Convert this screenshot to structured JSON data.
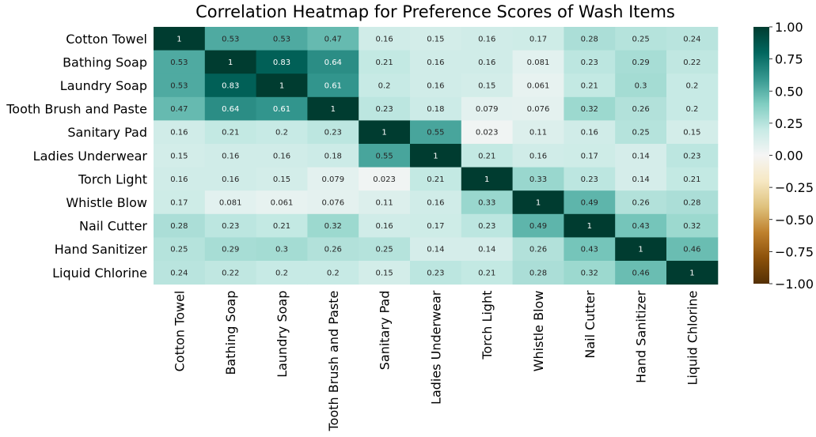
{
  "chart_data": {
    "type": "heatmap",
    "title": "Correlation Heatmap for Preference Scores of Wash Items",
    "labels": [
      "Cotton Towel",
      "Bathing Soap",
      "Laundry Soap",
      "Tooth Brush and Paste",
      "Sanitary Pad",
      "Ladies Underwear",
      "Torch Light",
      "Whistle Blow",
      "Nail Cutter",
      "Hand Sanitizer",
      "Liquid Chlorine"
    ],
    "matrix": [
      [
        1,
        0.53,
        0.53,
        0.47,
        0.16,
        0.15,
        0.16,
        0.17,
        0.28,
        0.25,
        0.24
      ],
      [
        0.53,
        1,
        0.83,
        0.64,
        0.21,
        0.16,
        0.16,
        0.081,
        0.23,
        0.29,
        0.22
      ],
      [
        0.53,
        0.83,
        1,
        0.61,
        0.2,
        0.16,
        0.15,
        0.061,
        0.21,
        0.3,
        0.2
      ],
      [
        0.47,
        0.64,
        0.61,
        1,
        0.23,
        0.18,
        0.079,
        0.076,
        0.32,
        0.26,
        0.2
      ],
      [
        0.16,
        0.21,
        0.2,
        0.23,
        1,
        0.55,
        0.023,
        0.11,
        0.16,
        0.25,
        0.15
      ],
      [
        0.15,
        0.16,
        0.16,
        0.18,
        0.55,
        1,
        0.21,
        0.16,
        0.17,
        0.14,
        0.23
      ],
      [
        0.16,
        0.16,
        0.15,
        0.079,
        0.023,
        0.21,
        1,
        0.33,
        0.23,
        0.14,
        0.21
      ],
      [
        0.17,
        0.081,
        0.061,
        0.076,
        0.11,
        0.16,
        0.33,
        1,
        0.49,
        0.26,
        0.28
      ],
      [
        0.28,
        0.23,
        0.21,
        0.32,
        0.16,
        0.17,
        0.23,
        0.49,
        1,
        0.43,
        0.32
      ],
      [
        0.25,
        0.29,
        0.3,
        0.26,
        0.25,
        0.14,
        0.14,
        0.26,
        0.43,
        1,
        0.46
      ],
      [
        0.24,
        0.22,
        0.2,
        0.2,
        0.15,
        0.23,
        0.21,
        0.28,
        0.32,
        0.46,
        1
      ]
    ],
    "colorbar": {
      "range": [
        -1,
        1
      ],
      "ticks": [
        "1.00",
        "0.75",
        "0.50",
        "0.25",
        "0.00",
        "−0.25",
        "−0.50",
        "−0.75",
        "−1.00"
      ],
      "colormap_stops": [
        "#543005",
        "#8c510a",
        "#bf812d",
        "#dfc27d",
        "#f6e8c3",
        "#f5f5f5",
        "#c7eae5",
        "#80cdc1",
        "#35978f",
        "#01665e",
        "#003c30"
      ]
    },
    "annotations": true
  }
}
